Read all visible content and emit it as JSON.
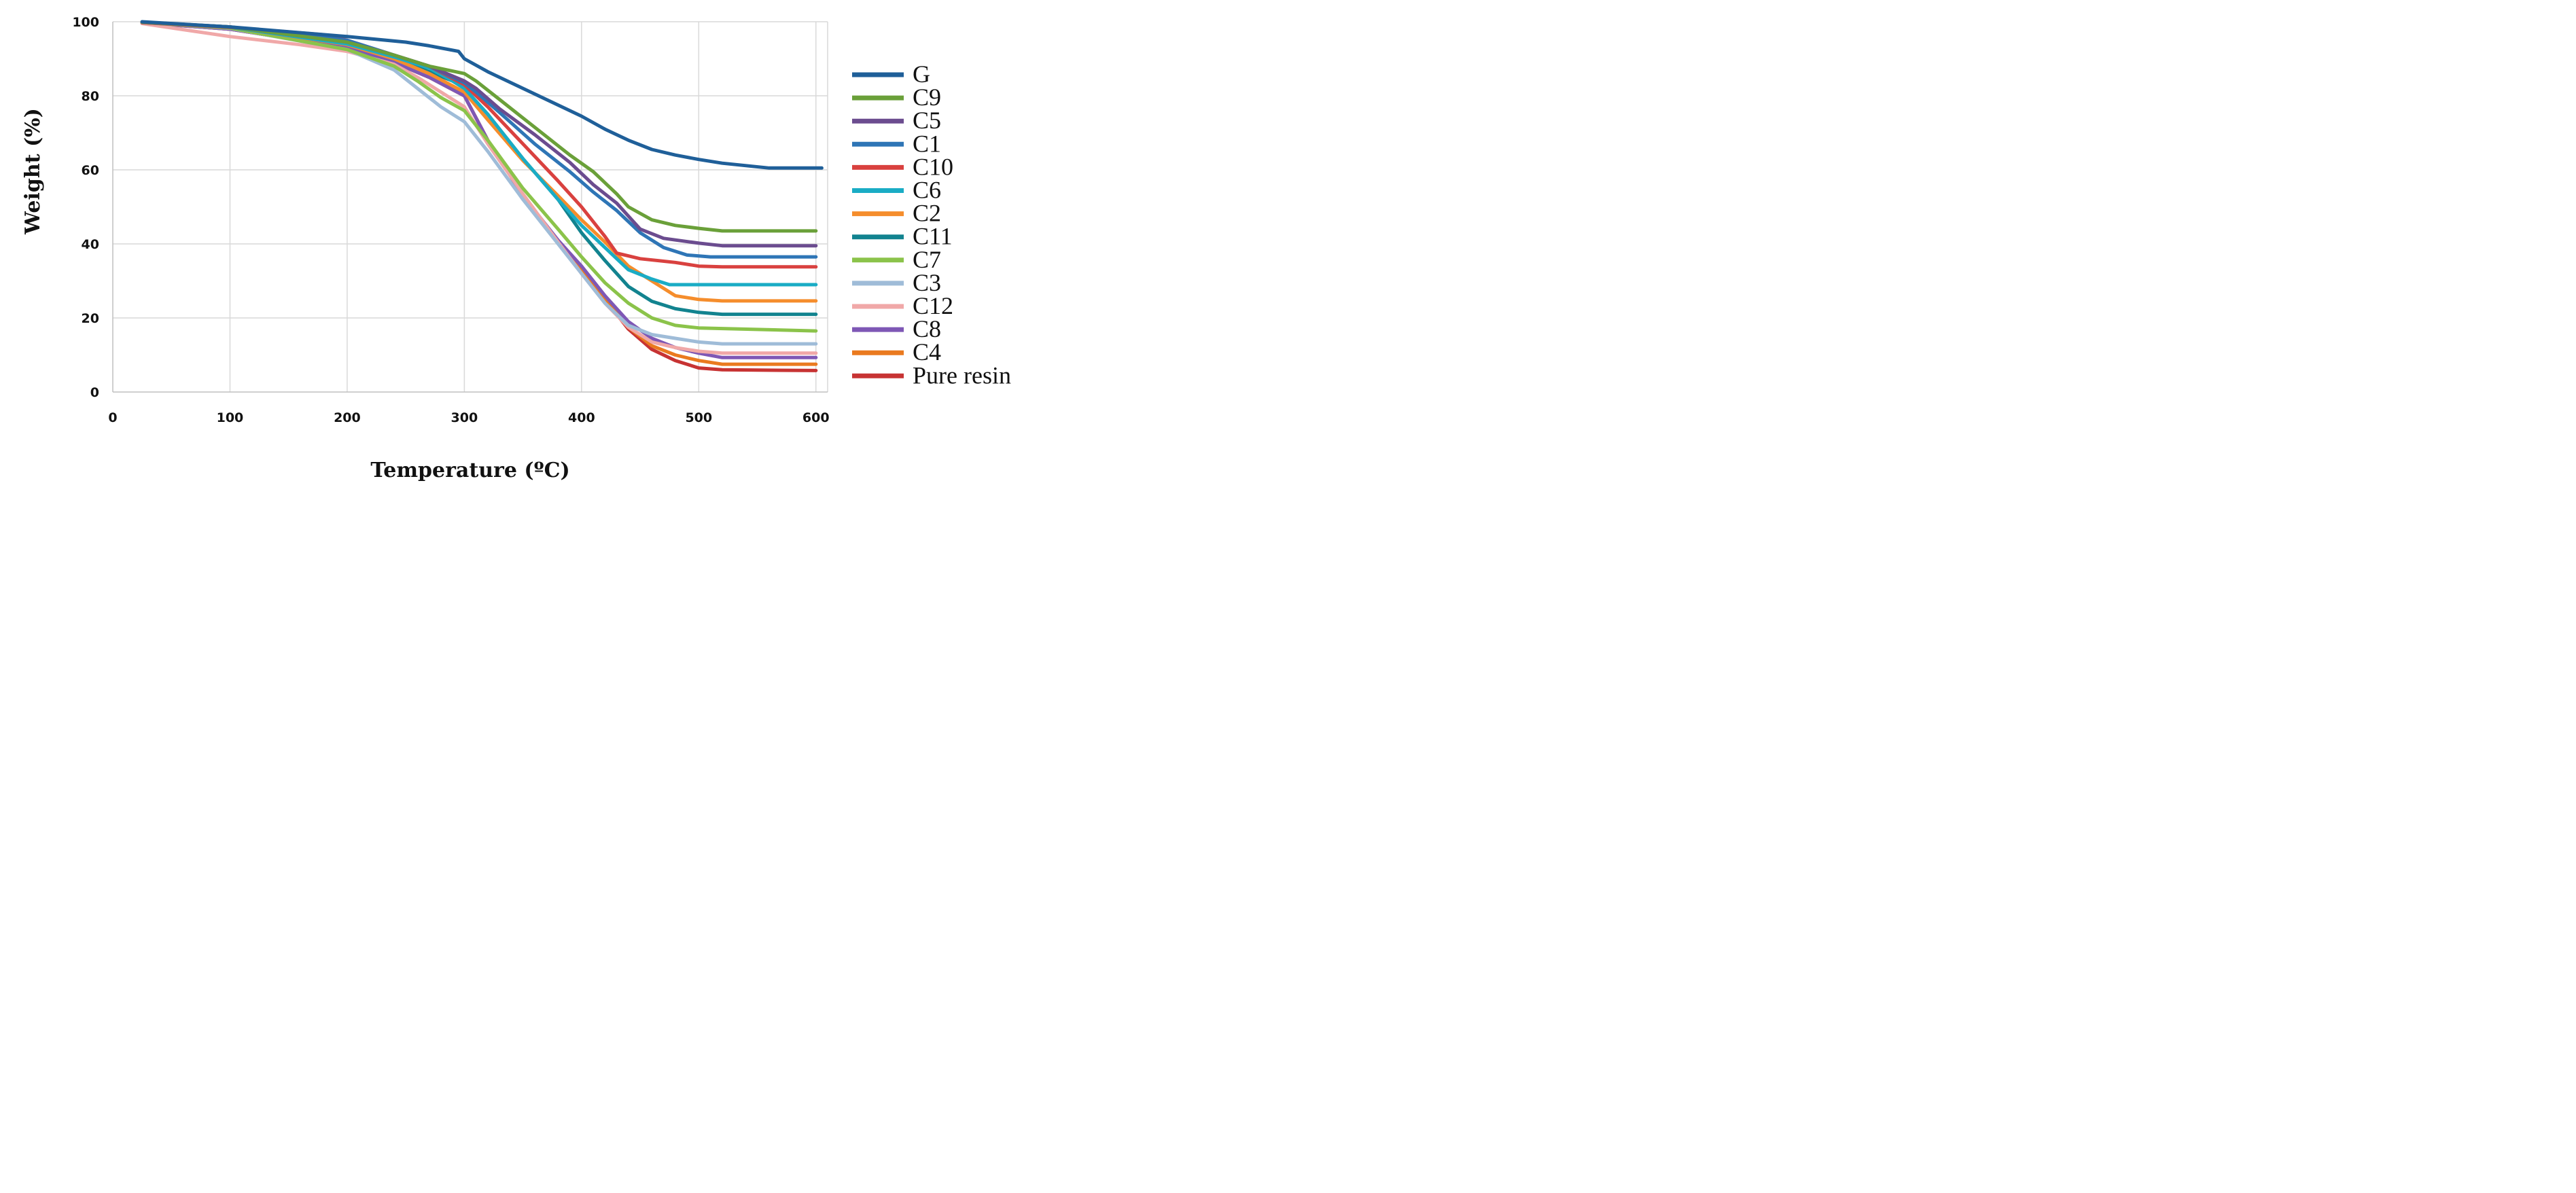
{
  "chart_data": {
    "type": "line",
    "title": "",
    "xlabel": "Temperature (ºC)",
    "ylabel": "Weight (%)",
    "xlim": [
      0,
      610
    ],
    "ylim": [
      0,
      100
    ],
    "xticks": [
      "0",
      "100",
      "200",
      "300",
      "400",
      "500",
      "600"
    ],
    "yticks": [
      "0",
      "20",
      "40",
      "60",
      "80",
      "100"
    ],
    "grid": true,
    "legend_position": "right",
    "series": [
      {
        "name": "G",
        "color": "#1f5f99",
        "points": [
          [
            25,
            100
          ],
          [
            100,
            98.6
          ],
          [
            200,
            96
          ],
          [
            250,
            94.5
          ],
          [
            270,
            93.5
          ],
          [
            295,
            92
          ],
          [
            300,
            90
          ],
          [
            320,
            86.5
          ],
          [
            350,
            82
          ],
          [
            380,
            77.5
          ],
          [
            400,
            74.5
          ],
          [
            420,
            71
          ],
          [
            440,
            68
          ],
          [
            460,
            65.5
          ],
          [
            480,
            64
          ],
          [
            500,
            62.8
          ],
          [
            520,
            61.8
          ],
          [
            560,
            60.5
          ],
          [
            605,
            60.5
          ]
        ]
      },
      {
        "name": "C9",
        "color": "#6aa039",
        "points": [
          [
            25,
            99.9
          ],
          [
            100,
            98.6
          ],
          [
            200,
            94.5
          ],
          [
            240,
            91
          ],
          [
            270,
            88
          ],
          [
            300,
            86
          ],
          [
            310,
            84
          ],
          [
            330,
            79
          ],
          [
            360,
            71.5
          ],
          [
            390,
            64
          ],
          [
            410,
            59.5
          ],
          [
            430,
            53.5
          ],
          [
            440,
            50
          ],
          [
            460,
            46.5
          ],
          [
            480,
            45
          ],
          [
            500,
            44.2
          ],
          [
            520,
            43.5
          ],
          [
            600,
            43.5
          ]
        ]
      },
      {
        "name": "C5",
        "color": "#6b4c8f",
        "points": [
          [
            25,
            99.9
          ],
          [
            100,
            98.6
          ],
          [
            200,
            94.5
          ],
          [
            240,
            91
          ],
          [
            270,
            88
          ],
          [
            300,
            84
          ],
          [
            310,
            82
          ],
          [
            330,
            76.5
          ],
          [
            360,
            69.5
          ],
          [
            390,
            62
          ],
          [
            410,
            56
          ],
          [
            430,
            51
          ],
          [
            450,
            44
          ],
          [
            470,
            41.5
          ],
          [
            500,
            40.2
          ],
          [
            520,
            39.5
          ],
          [
            600,
            39.5
          ]
        ]
      },
      {
        "name": "C1",
        "color": "#2e75b6",
        "points": [
          [
            25,
            99.9
          ],
          [
            100,
            98.6
          ],
          [
            200,
            95
          ],
          [
            240,
            91
          ],
          [
            270,
            88
          ],
          [
            300,
            83.5
          ],
          [
            310,
            81
          ],
          [
            330,
            75.5
          ],
          [
            360,
            67
          ],
          [
            390,
            59.5
          ],
          [
            410,
            54
          ],
          [
            430,
            49
          ],
          [
            450,
            43
          ],
          [
            470,
            39
          ],
          [
            490,
            37
          ],
          [
            510,
            36.5
          ],
          [
            600,
            36.5
          ]
        ]
      },
      {
        "name": "C10",
        "color": "#d9413f",
        "points": [
          [
            25,
            99.8
          ],
          [
            100,
            98.5
          ],
          [
            180,
            96.5
          ],
          [
            200,
            95
          ],
          [
            240,
            91
          ],
          [
            270,
            88
          ],
          [
            300,
            83
          ],
          [
            320,
            77
          ],
          [
            350,
            67
          ],
          [
            380,
            57
          ],
          [
            400,
            50
          ],
          [
            420,
            42
          ],
          [
            430,
            37.5
          ],
          [
            450,
            36
          ],
          [
            480,
            35
          ],
          [
            500,
            34
          ],
          [
            520,
            33.8
          ],
          [
            600,
            33.8
          ]
        ]
      },
      {
        "name": "C6",
        "color": "#1aacc5",
        "points": [
          [
            25,
            99.8
          ],
          [
            100,
            98.5
          ],
          [
            200,
            94
          ],
          [
            240,
            90.5
          ],
          [
            270,
            87.5
          ],
          [
            290,
            84
          ],
          [
            300,
            82
          ],
          [
            320,
            75
          ],
          [
            350,
            63
          ],
          [
            380,
            52
          ],
          [
            400,
            45
          ],
          [
            420,
            39
          ],
          [
            440,
            33
          ],
          [
            460,
            30.5
          ],
          [
            475,
            29
          ],
          [
            500,
            29
          ],
          [
            600,
            29
          ]
        ]
      },
      {
        "name": "C2",
        "color": "#f58d2c",
        "points": [
          [
            25,
            99.8
          ],
          [
            100,
            98.5
          ],
          [
            200,
            93.8
          ],
          [
            240,
            90
          ],
          [
            270,
            86
          ],
          [
            300,
            81
          ],
          [
            320,
            73.5
          ],
          [
            350,
            62.5
          ],
          [
            380,
            53
          ],
          [
            400,
            46.5
          ],
          [
            420,
            40.5
          ],
          [
            440,
            34
          ],
          [
            460,
            30
          ],
          [
            480,
            26
          ],
          [
            500,
            25
          ],
          [
            520,
            24.6
          ],
          [
            600,
            24.6
          ]
        ]
      },
      {
        "name": "C11",
        "color": "#12838f",
        "points": [
          [
            25,
            99.8
          ],
          [
            100,
            98.5
          ],
          [
            200,
            94
          ],
          [
            240,
            90
          ],
          [
            270,
            86.5
          ],
          [
            290,
            84
          ],
          [
            300,
            82
          ],
          [
            320,
            75
          ],
          [
            350,
            63
          ],
          [
            380,
            52
          ],
          [
            400,
            43
          ],
          [
            420,
            35.5
          ],
          [
            440,
            28.5
          ],
          [
            460,
            24.5
          ],
          [
            480,
            22.5
          ],
          [
            500,
            21.5
          ],
          [
            520,
            21
          ],
          [
            600,
            21
          ]
        ]
      },
      {
        "name": "C7",
        "color": "#8bc34a",
        "points": [
          [
            25,
            99.8
          ],
          [
            100,
            98.3
          ],
          [
            200,
            92.5
          ],
          [
            240,
            88
          ],
          [
            260,
            84
          ],
          [
            280,
            79.5
          ],
          [
            300,
            76
          ],
          [
            320,
            68
          ],
          [
            350,
            55
          ],
          [
            380,
            44
          ],
          [
            400,
            36.5
          ],
          [
            420,
            29.5
          ],
          [
            440,
            24
          ],
          [
            460,
            20
          ],
          [
            480,
            18
          ],
          [
            500,
            17.3
          ],
          [
            600,
            16.5
          ]
        ]
      },
      {
        "name": "C3",
        "color": "#9fbcd8",
        "points": [
          [
            25,
            99.8
          ],
          [
            100,
            98.2
          ],
          [
            200,
            92.5
          ],
          [
            240,
            87
          ],
          [
            260,
            82
          ],
          [
            280,
            77
          ],
          [
            300,
            73
          ],
          [
            320,
            65
          ],
          [
            350,
            52
          ],
          [
            380,
            40
          ],
          [
            400,
            32
          ],
          [
            420,
            24
          ],
          [
            440,
            18
          ],
          [
            460,
            15.5
          ],
          [
            480,
            14.5
          ],
          [
            500,
            13.5
          ],
          [
            520,
            13
          ],
          [
            600,
            13
          ]
        ]
      },
      {
        "name": "C12",
        "color": "#f0a8a8",
        "points": [
          [
            25,
            99.5
          ],
          [
            100,
            96
          ],
          [
            160,
            93.8
          ],
          [
            200,
            92
          ],
          [
            240,
            88.5
          ],
          [
            260,
            85
          ],
          [
            280,
            81
          ],
          [
            300,
            77
          ],
          [
            320,
            67
          ],
          [
            350,
            53.5
          ],
          [
            380,
            40.5
          ],
          [
            400,
            32
          ],
          [
            420,
            24
          ],
          [
            440,
            17.5
          ],
          [
            460,
            13.5
          ],
          [
            480,
            12
          ],
          [
            500,
            11
          ],
          [
            520,
            10.5
          ],
          [
            600,
            10.5
          ]
        ]
      },
      {
        "name": "C8",
        "color": "#7e57b5",
        "points": [
          [
            25,
            99.7
          ],
          [
            100,
            98
          ],
          [
            200,
            93
          ],
          [
            240,
            89
          ],
          [
            270,
            85
          ],
          [
            300,
            80
          ],
          [
            320,
            68
          ],
          [
            350,
            53
          ],
          [
            380,
            41
          ],
          [
            400,
            34
          ],
          [
            420,
            26
          ],
          [
            440,
            19
          ],
          [
            460,
            14.5
          ],
          [
            480,
            12
          ],
          [
            500,
            10.5
          ],
          [
            520,
            9.3
          ],
          [
            600,
            9.3
          ]
        ]
      },
      {
        "name": "C4",
        "color": "#ea7a1f",
        "points": [
          [
            25,
            99.7
          ],
          [
            100,
            98
          ],
          [
            200,
            93
          ],
          [
            240,
            89
          ],
          [
            270,
            85
          ],
          [
            300,
            80
          ],
          [
            320,
            68
          ],
          [
            350,
            53
          ],
          [
            380,
            40.5
          ],
          [
            400,
            33
          ],
          [
            420,
            25
          ],
          [
            440,
            17.5
          ],
          [
            460,
            12.5
          ],
          [
            480,
            10
          ],
          [
            500,
            8.5
          ],
          [
            520,
            7.5
          ],
          [
            600,
            7.5
          ]
        ]
      },
      {
        "name": "Pure resin",
        "color": "#c73333",
        "points": [
          [
            25,
            99.7
          ],
          [
            100,
            98
          ],
          [
            200,
            93
          ],
          [
            240,
            89
          ],
          [
            270,
            85
          ],
          [
            300,
            80
          ],
          [
            320,
            68
          ],
          [
            350,
            53
          ],
          [
            380,
            40.5
          ],
          [
            400,
            33
          ],
          [
            420,
            25
          ],
          [
            440,
            17
          ],
          [
            460,
            11.5
          ],
          [
            480,
            8.5
          ],
          [
            500,
            6.5
          ],
          [
            520,
            6
          ],
          [
            600,
            5.8
          ]
        ]
      }
    ]
  }
}
